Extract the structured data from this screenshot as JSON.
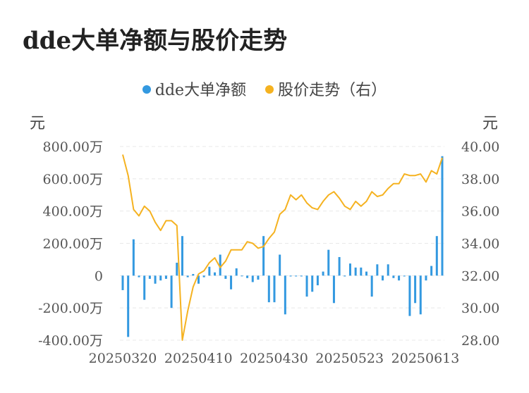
{
  "chart_data": {
    "title": "dde大单净额与股价走势",
    "type": "bar+line",
    "legend": [
      {
        "name": "dde大单净额",
        "color": "#3399e0"
      },
      {
        "name": "股价走势（右）",
        "color": "#f5b220"
      }
    ],
    "y_left_unit": "元",
    "y_right_unit": "元",
    "y_left_ticks": [
      "800.00万",
      "600.00万",
      "400.00万",
      "200.00万",
      "0",
      "-200.00万",
      "-400.00万"
    ],
    "y_left_range": [
      -400,
      800
    ],
    "y_right_ticks": [
      "40.00",
      "38.00",
      "36.00",
      "34.00",
      "32.00",
      "30.00",
      "28.00"
    ],
    "y_right_range": [
      28,
      40
    ],
    "x_ticks": [
      "20250320",
      "20250410",
      "20250430",
      "20250523",
      "20250613"
    ],
    "grid": true,
    "series": [
      {
        "name": "dde大单净额",
        "type": "bar",
        "unit": "万元",
        "values": [
          -90,
          -380,
          225,
          -10,
          -150,
          -20,
          -50,
          -30,
          -20,
          -200,
          80,
          245,
          -10,
          10,
          -50,
          -10,
          55,
          20,
          130,
          -20,
          -85,
          45,
          0,
          -15,
          -40,
          -25,
          245,
          -165,
          -165,
          130,
          -240,
          -5,
          -5,
          -5,
          -130,
          -100,
          -60,
          25,
          160,
          -170,
          115,
          -5,
          75,
          50,
          50,
          25,
          -130,
          70,
          -30,
          70,
          -15,
          -30,
          -5,
          -250,
          -170,
          -240,
          -30,
          60,
          245,
          740
        ]
      },
      {
        "name": "股价走势（右）",
        "type": "line",
        "values": [
          39.5,
          38.2,
          36.1,
          35.7,
          36.3,
          36.0,
          35.3,
          34.8,
          35.4,
          35.4,
          35.1,
          28.0,
          29.8,
          31.3,
          32.1,
          32.3,
          32.8,
          33.1,
          32.5,
          32.9,
          33.6,
          33.6,
          33.6,
          34.1,
          34.0,
          33.7,
          33.8,
          34.3,
          34.7,
          35.8,
          36.1,
          37.0,
          36.7,
          37.0,
          36.5,
          36.2,
          36.1,
          36.6,
          37.0,
          37.2,
          36.8,
          36.3,
          36.1,
          36.6,
          36.3,
          36.6,
          37.2,
          36.9,
          37.0,
          37.4,
          37.7,
          37.7,
          38.3,
          38.2,
          38.2,
          38.3,
          37.8,
          38.5,
          38.3,
          39.3
        ]
      }
    ]
  }
}
